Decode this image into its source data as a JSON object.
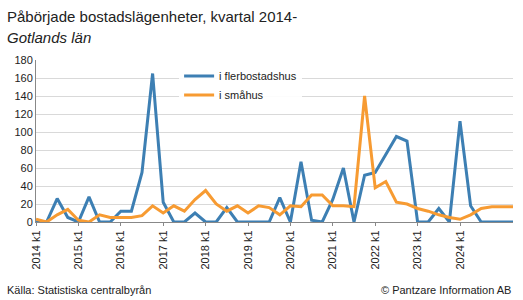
{
  "chart_data": {
    "type": "line",
    "title": "Påbörjade bostadslägenheter, kvartal 2014-",
    "subtitle": "Gotlands län",
    "annotations": [
      "Källa: Statistiska centralbyrån",
      "© Pantzare Information AB"
    ],
    "categories": [
      "2014 k1",
      null,
      null,
      null,
      "2015 k1",
      null,
      null,
      null,
      "2016 k1",
      null,
      null,
      null,
      "2017 k1",
      null,
      null,
      null,
      "2018 k1",
      null,
      null,
      null,
      "2019 k1",
      null,
      null,
      null,
      "2020 k1",
      null,
      null,
      null,
      "2021 k1",
      null,
      null,
      null,
      "2022 k1",
      null,
      null,
      null,
      "2023 k1",
      null,
      null,
      null,
      "2024 k1",
      null,
      null,
      null,
      null,
      null
    ],
    "series": [
      {
        "name": "i flerbostadshus",
        "color": "#3d7fb3",
        "values": [
          0,
          0,
          26,
          5,
          0,
          28,
          0,
          0,
          12,
          12,
          55,
          165,
          22,
          0,
          0,
          10,
          0,
          0,
          16,
          0,
          0,
          0,
          0,
          27,
          0,
          67,
          2,
          0,
          25,
          60,
          0,
          52,
          55,
          75,
          95,
          90,
          0,
          0,
          15,
          0,
          112,
          18,
          0,
          0,
          0,
          0
        ]
      },
      {
        "name": "i småhus",
        "color": "#f79b32",
        "values": [
          3,
          0,
          8,
          14,
          2,
          0,
          8,
          5,
          5,
          5,
          7,
          18,
          10,
          18,
          12,
          25,
          35,
          20,
          12,
          18,
          10,
          18,
          16,
          8,
          18,
          17,
          30,
          30,
          18,
          18,
          17,
          140,
          38,
          45,
          22,
          20,
          15,
          12,
          8,
          5,
          3,
          8,
          15,
          17,
          17,
          17
        ]
      }
    ],
    "ylim": [
      0,
      180
    ],
    "yticks": [
      0,
      20,
      40,
      60,
      80,
      100,
      120,
      140,
      160,
      180
    ],
    "grid": true,
    "legend": "top"
  }
}
